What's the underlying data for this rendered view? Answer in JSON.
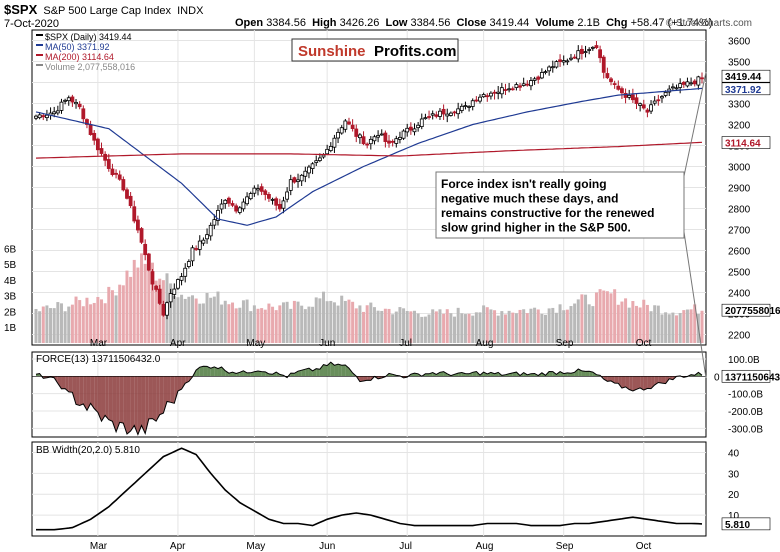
{
  "header": {
    "symbol": "$SPX",
    "name": "S&P 500 Large Cap Index",
    "exchange": "INDX",
    "date": "7-Oct-2020",
    "open_label": "Open",
    "open": "3384.56",
    "high_label": "High",
    "high": "3426.26",
    "low_label": "Low",
    "low": "3384.56",
    "close_label": "Close",
    "close": "3419.44",
    "volume_label": "Volume",
    "volume": "2.1B",
    "chg_label": "Chg",
    "chg": "+58.47 (+1.74%)",
    "watermark": "© StockCharts.com"
  },
  "logo": {
    "part1": "Sunshine",
    "part2": "Profits.com",
    "color1": "#c0392b"
  },
  "annotation": {
    "text": "Force index isn't really going negative much these days, and remains constructive for the renewed slow grind higher in the S&P 500.",
    "lines": [
      "Force index isn't really going",
      "negative much these days, and",
      "remains constructive for the renewed",
      "slow grind higher in the S&P 500."
    ]
  },
  "chart_data": [
    {
      "type": "candlestick",
      "legend": [
        {
          "label": "$SPX (Daily) 3419.44",
          "color": "#000000"
        },
        {
          "label": "MA(50) 3371.92",
          "color": "#1f3a93"
        },
        {
          "label": "MA(200) 3114.64",
          "color": "#b0182a"
        },
        {
          "label": "Volume 2,077,558,016",
          "color": "#888888"
        }
      ],
      "x_months": [
        "Mar",
        "Apr",
        "May",
        "Jun",
        "Jul",
        "Aug",
        "Sep",
        "Oct"
      ],
      "ylim": [
        2150,
        3650
      ],
      "y_ticks": [
        2200,
        2300,
        2400,
        2500,
        2600,
        2700,
        2800,
        2900,
        3000,
        3100,
        3200,
        3300,
        3400,
        3500,
        3600
      ],
      "volume_ticks": [
        "1B",
        "2B",
        "3B",
        "4B",
        "5B",
        "6B"
      ],
      "last_price": "3419.44",
      "ma50_value": "3371.92",
      "ma200_value": "3114.64",
      "volume_value": "2077558016",
      "price_anchors": [
        [
          0,
          3240
        ],
        [
          5,
          3260
        ],
        [
          9,
          3330
        ],
        [
          12,
          3280
        ],
        [
          16,
          3120
        ],
        [
          20,
          3000
        ],
        [
          24,
          2900
        ],
        [
          28,
          2700
        ],
        [
          32,
          2450
        ],
        [
          35,
          2300
        ],
        [
          37,
          2400
        ],
        [
          40,
          2480
        ],
        [
          43,
          2600
        ],
        [
          46,
          2650
        ],
        [
          49,
          2750
        ],
        [
          52,
          2850
        ],
        [
          55,
          2800
        ],
        [
          58,
          2850
        ],
        [
          61,
          2900
        ],
        [
          64,
          2850
        ],
        [
          67,
          2800
        ],
        [
          70,
          2930
        ],
        [
          73,
          2950
        ],
        [
          76,
          3000
        ],
        [
          79,
          3050
        ],
        [
          82,
          3140
        ],
        [
          85,
          3220
        ],
        [
          88,
          3150
        ],
        [
          91,
          3110
        ],
        [
          94,
          3160
        ],
        [
          97,
          3100
        ],
        [
          100,
          3150
        ],
        [
          103,
          3180
        ],
        [
          106,
          3220
        ],
        [
          109,
          3240
        ],
        [
          112,
          3260
        ],
        [
          115,
          3270
        ],
        [
          118,
          3280
        ],
        [
          121,
          3330
        ],
        [
          124,
          3350
        ],
        [
          127,
          3360
        ],
        [
          130,
          3380
        ],
        [
          133,
          3390
        ],
        [
          136,
          3410
        ],
        [
          139,
          3440
        ],
        [
          142,
          3480
        ],
        [
          145,
          3500
        ],
        [
          148,
          3530
        ],
        [
          151,
          3560
        ],
        [
          154,
          3580
        ],
        [
          156,
          3450
        ],
        [
          159,
          3380
        ],
        [
          162,
          3340
        ],
        [
          165,
          3300
        ],
        [
          168,
          3260
        ],
        [
          171,
          3320
        ],
        [
          174,
          3360
        ],
        [
          177,
          3380
        ],
        [
          180,
          3400
        ],
        [
          183,
          3419
        ]
      ],
      "ma50_anchors": [
        [
          0,
          3260
        ],
        [
          20,
          3180
        ],
        [
          40,
          2920
        ],
        [
          50,
          2750
        ],
        [
          58,
          2720
        ],
        [
          66,
          2760
        ],
        [
          76,
          2880
        ],
        [
          90,
          3000
        ],
        [
          105,
          3110
        ],
        [
          120,
          3200
        ],
        [
          135,
          3260
        ],
        [
          150,
          3310
        ],
        [
          160,
          3340
        ],
        [
          183,
          3372
        ]
      ],
      "ma200_anchors": [
        [
          0,
          3040
        ],
        [
          40,
          3060
        ],
        [
          70,
          3060
        ],
        [
          100,
          3050
        ],
        [
          130,
          3075
        ],
        [
          160,
          3095
        ],
        [
          183,
          3115
        ]
      ],
      "volume_anchors": [
        [
          0,
          2.0
        ],
        [
          10,
          2.4
        ],
        [
          20,
          3.0
        ],
        [
          28,
          5.0
        ],
        [
          34,
          4.2
        ],
        [
          40,
          3.0
        ],
        [
          50,
          2.8
        ],
        [
          60,
          2.3
        ],
        [
          70,
          2.2
        ],
        [
          80,
          2.8
        ],
        [
          90,
          2.2
        ],
        [
          100,
          2.0
        ],
        [
          110,
          1.8
        ],
        [
          120,
          2.0
        ],
        [
          130,
          2.0
        ],
        [
          140,
          2.1
        ],
        [
          150,
          2.6
        ],
        [
          158,
          3.0
        ],
        [
          165,
          2.4
        ],
        [
          175,
          2.0
        ],
        [
          183,
          2.1
        ]
      ]
    },
    {
      "type": "area",
      "legend": [
        {
          "label": "FORCE(13) 13711506432.0",
          "color": "#000000"
        }
      ],
      "ylim": [
        -350,
        140
      ],
      "y_ticks": [
        "100.0B",
        "-100.0B",
        "-200.0B",
        "-300.0B"
      ],
      "y_tick_values": [
        100,
        -100,
        -200,
        -300
      ],
      "zero_label": "0",
      "last_value": "13711506432",
      "positive_color": "#4e7a3e",
      "negative_color": "#8b3a3a",
      "anchors": [
        [
          0,
          10
        ],
        [
          5,
          -20
        ],
        [
          9,
          -100
        ],
        [
          13,
          -160
        ],
        [
          17,
          -220
        ],
        [
          21,
          -280
        ],
        [
          25,
          -300
        ],
        [
          29,
          -320
        ],
        [
          33,
          -250
        ],
        [
          37,
          -150
        ],
        [
          41,
          -40
        ],
        [
          45,
          50
        ],
        [
          49,
          60
        ],
        [
          53,
          30
        ],
        [
          57,
          20
        ],
        [
          61,
          40
        ],
        [
          65,
          20
        ],
        [
          69,
          0
        ],
        [
          73,
          30
        ],
        [
          77,
          40
        ],
        [
          81,
          70
        ],
        [
          85,
          60
        ],
        [
          89,
          -20
        ],
        [
          93,
          -10
        ],
        [
          97,
          10
        ],
        [
          101,
          0
        ],
        [
          105,
          10
        ],
        [
          109,
          20
        ],
        [
          113,
          15
        ],
        [
          117,
          10
        ],
        [
          121,
          20
        ],
        [
          125,
          15
        ],
        [
          129,
          10
        ],
        [
          133,
          15
        ],
        [
          137,
          10
        ],
        [
          141,
          20
        ],
        [
          145,
          25
        ],
        [
          149,
          30
        ],
        [
          153,
          20
        ],
        [
          157,
          -30
        ],
        [
          161,
          -60
        ],
        [
          165,
          -80
        ],
        [
          169,
          -60
        ],
        [
          173,
          -30
        ],
        [
          177,
          0
        ],
        [
          181,
          10
        ],
        [
          183,
          14
        ]
      ]
    },
    {
      "type": "line",
      "legend": [
        {
          "label": "BB Width(20,2.0) 5.810",
          "color": "#000000"
        }
      ],
      "ylim": [
        0,
        45
      ],
      "y_ticks": [
        10,
        20,
        30,
        40
      ],
      "last_value": "5.810",
      "x_months": [
        "Mar",
        "Apr",
        "May",
        "Jun",
        "Jul",
        "Aug",
        "Sep",
        "Oct"
      ],
      "anchors": [
        [
          0,
          3
        ],
        [
          5,
          3
        ],
        [
          10,
          4
        ],
        [
          15,
          8
        ],
        [
          20,
          14
        ],
        [
          25,
          22
        ],
        [
          30,
          30
        ],
        [
          35,
          38
        ],
        [
          40,
          42
        ],
        [
          44,
          39
        ],
        [
          48,
          30
        ],
        [
          52,
          22
        ],
        [
          56,
          16
        ],
        [
          60,
          12
        ],
        [
          64,
          8
        ],
        [
          68,
          6
        ],
        [
          72,
          6
        ],
        [
          76,
          5
        ],
        [
          80,
          8
        ],
        [
          84,
          10
        ],
        [
          88,
          11
        ],
        [
          92,
          10
        ],
        [
          96,
          8
        ],
        [
          100,
          6
        ],
        [
          104,
          5
        ],
        [
          108,
          5
        ],
        [
          112,
          5
        ],
        [
          116,
          5
        ],
        [
          120,
          5
        ],
        [
          124,
          6
        ],
        [
          128,
          6
        ],
        [
          132,
          6
        ],
        [
          136,
          5
        ],
        [
          140,
          5
        ],
        [
          144,
          5
        ],
        [
          148,
          6
        ],
        [
          152,
          6
        ],
        [
          156,
          7
        ],
        [
          160,
          8
        ],
        [
          164,
          9
        ],
        [
          168,
          8
        ],
        [
          172,
          7
        ],
        [
          176,
          6
        ],
        [
          180,
          6
        ],
        [
          183,
          5.81
        ]
      ]
    }
  ]
}
